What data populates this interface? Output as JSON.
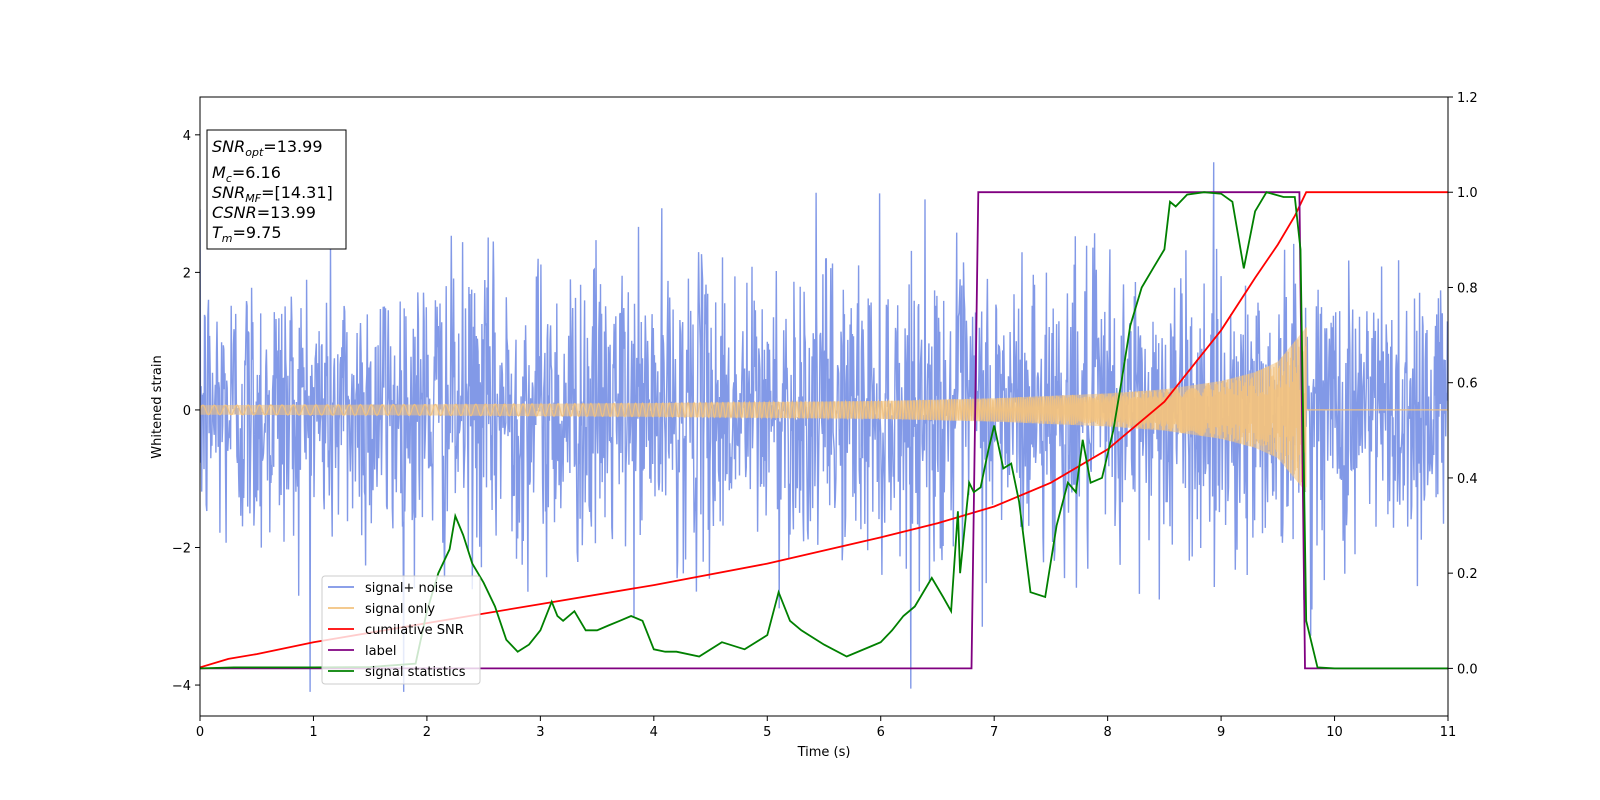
{
  "chart_data": {
    "type": "line",
    "xlabel": "Time (s)",
    "ylabel": "Whitened strain",
    "xlim": [
      0,
      11
    ],
    "ylim": [
      -4.45,
      4.55
    ],
    "y2lim": [
      -0.1,
      1.2
    ],
    "x_ticks": [
      0,
      1,
      2,
      3,
      4,
      5,
      6,
      7,
      8,
      9,
      10,
      11
    ],
    "y_ticks": [
      -4,
      -2,
      0,
      2,
      4
    ],
    "y_tick_labels": [
      "−4",
      "−2",
      "0",
      "2",
      "4"
    ],
    "y2_ticks": [
      0.0,
      0.2,
      0.4,
      0.6,
      0.8,
      1.0,
      1.2
    ],
    "y2_tick_labels": [
      "0.0",
      "0.2",
      "0.4",
      "0.6",
      "0.8",
      "1.0",
      "1.2"
    ],
    "legend_position": "lower-left",
    "info_box": {
      "position": "top-left",
      "lines": [
        {
          "main": "SNR",
          "sub": "opt",
          "value": "=13.99"
        },
        {
          "main": "M",
          "sub": "c",
          "value": "=6.16"
        },
        {
          "main": "SNR",
          "sub": "MF",
          "value": "=[14.31]"
        },
        {
          "main": "CSNR",
          "sub": "",
          "value": "=13.99"
        },
        {
          "main": "T",
          "sub": "m",
          "value": "=9.75"
        }
      ]
    },
    "series": [
      {
        "name": "signal+ noise",
        "color": "#7b93e6",
        "axis": "left",
        "kind": "noise",
        "std": 1.05,
        "x_range": [
          0,
          11
        ],
        "samples": 2200
      },
      {
        "name": "signal only",
        "color": "#f2c27f",
        "axis": "left",
        "kind": "chirp",
        "envelope_x": [
          0,
          2,
          4,
          6,
          7,
          8,
          8.5,
          9,
          9.3,
          9.5,
          9.65,
          9.75
        ],
        "envelope_y": [
          0.07,
          0.08,
          0.1,
          0.13,
          0.17,
          0.24,
          0.3,
          0.42,
          0.55,
          0.7,
          1.0,
          1.2
        ],
        "end_x": 9.75
      },
      {
        "name": "cumilative SNR",
        "color": "#ff0000",
        "axis": "right",
        "x": [
          0,
          0.25,
          0.5,
          1,
          1.5,
          2,
          3,
          4,
          5,
          6,
          6.5,
          7,
          7.5,
          8,
          8.5,
          9,
          9.3,
          9.5,
          9.65,
          9.75,
          11
        ],
        "y": [
          0.002,
          0.02,
          0.03,
          0.055,
          0.075,
          0.095,
          0.135,
          0.175,
          0.22,
          0.275,
          0.305,
          0.34,
          0.39,
          0.46,
          0.56,
          0.71,
          0.82,
          0.89,
          0.95,
          1.0,
          1.0
        ]
      },
      {
        "name": "label",
        "color": "#800080",
        "axis": "right",
        "x": [
          0,
          6.8,
          6.86,
          9.69,
          9.74,
          11
        ],
        "y": [
          0,
          0,
          1,
          1,
          0,
          0
        ]
      },
      {
        "name": "signal statistics",
        "color": "#008000",
        "axis": "right",
        "x": [
          0,
          0.3,
          1.0,
          1.5,
          1.9,
          2.0,
          2.1,
          2.2,
          2.25,
          2.32,
          2.4,
          2.5,
          2.6,
          2.7,
          2.8,
          2.9,
          3.0,
          3.1,
          3.15,
          3.2,
          3.3,
          3.4,
          3.5,
          3.6,
          3.7,
          3.8,
          3.9,
          4.0,
          4.1,
          4.2,
          4.4,
          4.6,
          4.8,
          5.0,
          5.1,
          5.2,
          5.3,
          5.5,
          5.7,
          5.9,
          6.0,
          6.1,
          6.2,
          6.3,
          6.45,
          6.55,
          6.62,
          6.68,
          6.7,
          6.78,
          6.82,
          6.88,
          6.95,
          7.0,
          7.08,
          7.15,
          7.22,
          7.32,
          7.45,
          7.55,
          7.65,
          7.72,
          7.78,
          7.85,
          7.95,
          8.05,
          8.12,
          8.2,
          8.3,
          8.4,
          8.5,
          8.55,
          8.6,
          8.7,
          8.85,
          9.0,
          9.1,
          9.2,
          9.3,
          9.4,
          9.55,
          9.65,
          9.7,
          9.75,
          9.85,
          10.0,
          11.0
        ],
        "y": [
          0.0,
          0.002,
          0.002,
          0.003,
          0.01,
          0.12,
          0.2,
          0.25,
          0.32,
          0.28,
          0.22,
          0.18,
          0.13,
          0.06,
          0.035,
          0.05,
          0.08,
          0.14,
          0.11,
          0.1,
          0.12,
          0.08,
          0.08,
          0.09,
          0.1,
          0.11,
          0.1,
          0.04,
          0.035,
          0.035,
          0.025,
          0.055,
          0.04,
          0.07,
          0.16,
          0.1,
          0.08,
          0.05,
          0.025,
          0.045,
          0.055,
          0.08,
          0.11,
          0.13,
          0.19,
          0.15,
          0.12,
          0.33,
          0.2,
          0.39,
          0.37,
          0.38,
          0.46,
          0.51,
          0.42,
          0.43,
          0.35,
          0.16,
          0.15,
          0.3,
          0.39,
          0.37,
          0.48,
          0.39,
          0.4,
          0.5,
          0.6,
          0.72,
          0.8,
          0.84,
          0.88,
          0.98,
          0.97,
          0.995,
          1.0,
          0.997,
          0.98,
          0.84,
          0.96,
          1.0,
          0.99,
          0.99,
          0.88,
          0.1,
          0.002,
          0.0,
          0.0
        ]
      }
    ]
  }
}
